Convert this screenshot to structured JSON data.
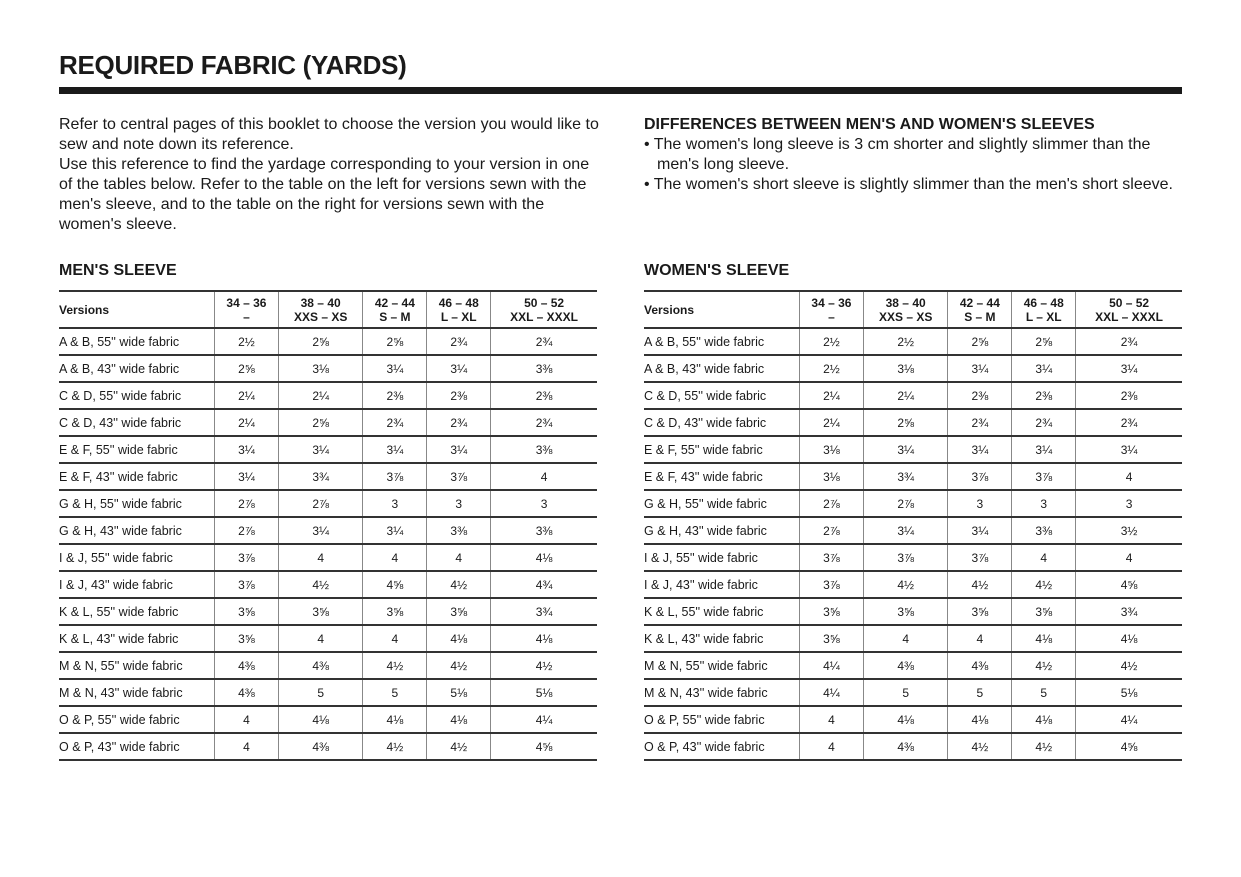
{
  "title": "REQUIRED FABRIC (YARDS)",
  "intro": [
    "Refer to central pages of this booklet to choose the version you would like to sew and note down its reference.",
    "Use this reference to find the yardage corresponding to your version in one of the tables below. Refer to the table on the left for versions sewn with the men's sleeve, and to the table on the right for versions sewn with the women's sleeve."
  ],
  "differences": {
    "heading": "DIFFERENCES BETWEEN MEN'S AND WOMEN'S SLEEVES",
    "items": [
      "• The women's long sleeve is 3 cm shorter and slightly slimmer than the men's long sleeve.",
      "• The women's short sleeve is slightly slimmer than the men's short sleeve."
    ]
  },
  "columns": [
    {
      "size": "Versions",
      "letter": ""
    },
    {
      "size": "34 – 36",
      "letter": "–"
    },
    {
      "size": "38 – 40",
      "letter": "XXS – XS"
    },
    {
      "size": "42 – 44",
      "letter": "S – M"
    },
    {
      "size": "46 – 48",
      "letter": "L – XL"
    },
    {
      "size": "50 – 52",
      "letter": "XXL – XXXL"
    }
  ],
  "tables": [
    {
      "heading": "MEN'S SLEEVE",
      "rows": [
        [
          "A & B, 55'' wide fabric",
          "2½",
          "2⅝",
          "2⅝",
          "2¾",
          "2¾"
        ],
        [
          "A & B, 43'' wide fabric",
          "2⅝",
          "3⅛",
          "3¼",
          "3¼",
          "3⅜"
        ],
        [
          "C & D, 55'' wide fabric",
          "2¼",
          "2¼",
          "2⅜",
          "2⅜",
          "2⅜"
        ],
        [
          "C & D, 43'' wide fabric",
          "2¼",
          "2⅝",
          "2¾",
          "2¾",
          "2¾"
        ],
        [
          "E & F, 55'' wide fabric",
          "3¼",
          "3¼",
          "3¼",
          "3¼",
          "3⅜"
        ],
        [
          "E & F, 43'' wide fabric",
          "3¼",
          "3¾",
          "3⅞",
          "3⅞",
          "4"
        ],
        [
          "G & H, 55'' wide fabric",
          "2⅞",
          "2⅞",
          "3",
          "3",
          "3"
        ],
        [
          "G & H, 43'' wide fabric",
          "2⅞",
          "3¼",
          "3¼",
          "3⅜",
          "3⅜"
        ],
        [
          "I & J, 55'' wide fabric",
          "3⅞",
          "4",
          "4",
          "4",
          "4⅛"
        ],
        [
          "I & J, 43'' wide fabric",
          "3⅞",
          "4½",
          "4⅝",
          "4½",
          "4¾"
        ],
        [
          "K & L, 55'' wide fabric",
          "3⅝",
          "3⅝",
          "3⅝",
          "3⅝",
          "3¾"
        ],
        [
          "K & L, 43'' wide fabric",
          "3⅝",
          "4",
          "4",
          "4⅛",
          "4⅛"
        ],
        [
          "M & N, 55'' wide fabric",
          "4⅜",
          "4⅜",
          "4½",
          "4½",
          "4½"
        ],
        [
          "M & N, 43'' wide fabric",
          "4⅜",
          "5",
          "5",
          "5⅛",
          "5⅛"
        ],
        [
          "O & P, 55'' wide fabric",
          "4",
          "4⅛",
          "4⅛",
          "4⅛",
          "4¼"
        ],
        [
          "O & P, 43'' wide fabric",
          "4",
          "4⅜",
          "4½",
          "4½",
          "4⅝"
        ]
      ]
    },
    {
      "heading": "WOMEN'S SLEEVE",
      "rows": [
        [
          "A & B, 55'' wide fabric",
          "2½",
          "2½",
          "2⅝",
          "2⅝",
          "2¾"
        ],
        [
          "A & B, 43'' wide fabric",
          "2½",
          "3⅛",
          "3¼",
          "3¼",
          "3¼"
        ],
        [
          "C & D, 55'' wide fabric",
          "2¼",
          "2¼",
          "2⅜",
          "2⅜",
          "2⅜"
        ],
        [
          "C & D, 43'' wide fabric",
          "2¼",
          "2⅝",
          "2¾",
          "2¾",
          "2¾"
        ],
        [
          "E & F, 55'' wide fabric",
          "3⅛",
          "3¼",
          "3¼",
          "3¼",
          "3¼"
        ],
        [
          "E & F, 43'' wide fabric",
          "3⅛",
          "3¾",
          "3⅞",
          "3⅞",
          "4"
        ],
        [
          "G & H, 55'' wide fabric",
          "2⅞",
          "2⅞",
          "3",
          "3",
          "3"
        ],
        [
          "G & H, 43'' wide fabric",
          "2⅞",
          "3¼",
          "3¼",
          "3⅜",
          "3½"
        ],
        [
          "I & J, 55'' wide fabric",
          "3⅞",
          "3⅞",
          "3⅞",
          "4",
          "4"
        ],
        [
          "I & J, 43'' wide fabric",
          "3⅞",
          "4½",
          "4½",
          "4½",
          "4⅝"
        ],
        [
          "K & L, 55'' wide fabric",
          "3⅝",
          "3⅝",
          "3⅝",
          "3⅝",
          "3¾"
        ],
        [
          "K & L, 43'' wide fabric",
          "3⅝",
          "4",
          "4",
          "4⅛",
          "4⅛"
        ],
        [
          "M & N, 55'' wide fabric",
          "4¼",
          "4⅜",
          "4⅜",
          "4½",
          "4½"
        ],
        [
          "M & N, 43'' wide fabric",
          "4¼",
          "5",
          "5",
          "5",
          "5⅛"
        ],
        [
          "O & P, 55'' wide fabric",
          "4",
          "4⅛",
          "4⅛",
          "4⅛",
          "4¼"
        ],
        [
          "O & P, 43'' wide fabric",
          "4",
          "4⅜",
          "4½",
          "4½",
          "4⅝"
        ]
      ]
    }
  ]
}
